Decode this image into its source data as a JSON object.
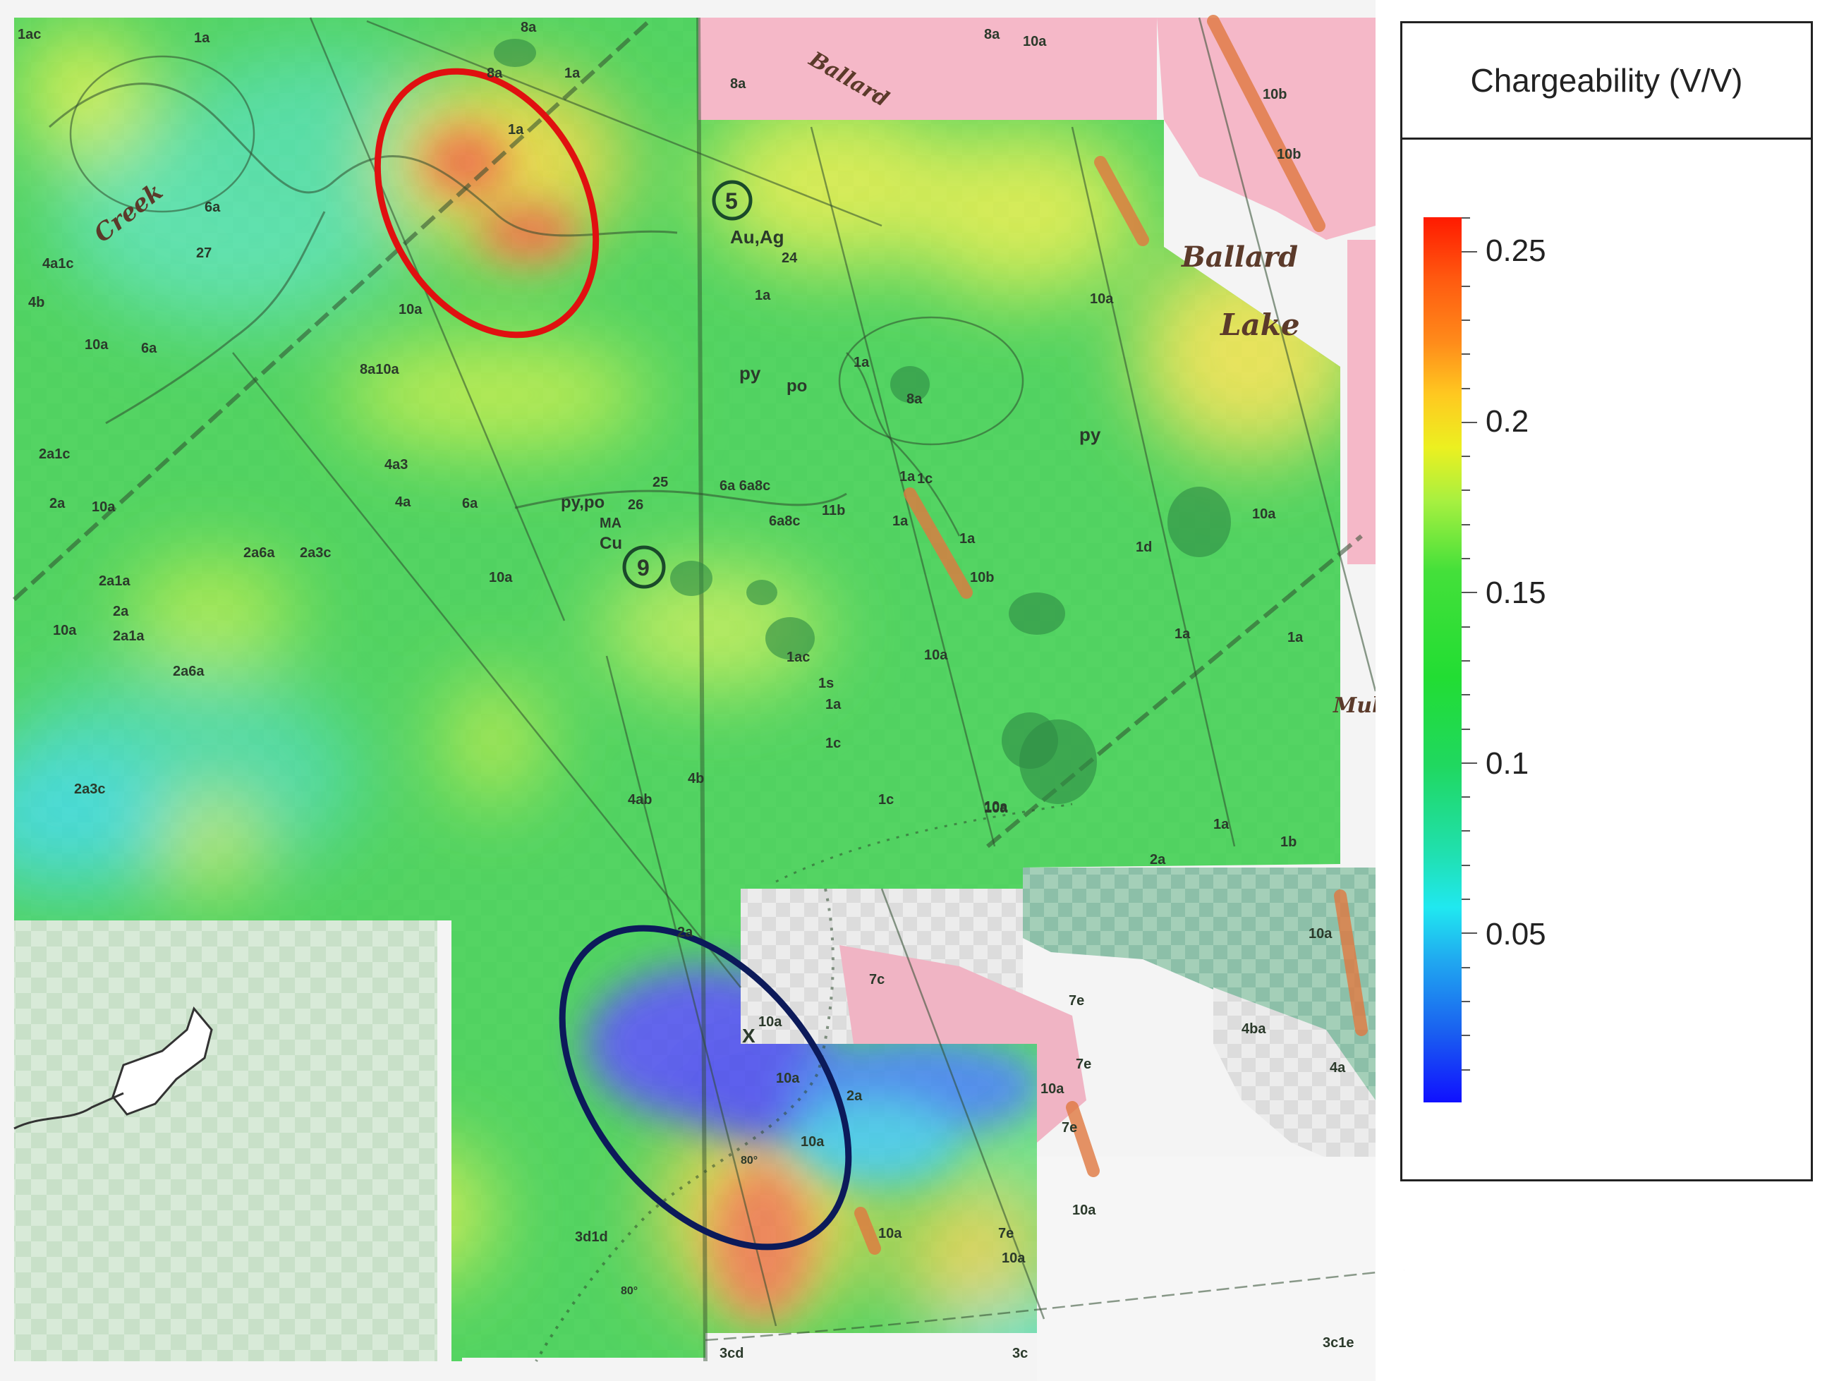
{
  "legend": {
    "title": "Chargeability (V/V)",
    "ticks": [
      "0.25",
      "0.2",
      "0.15",
      "0.1",
      "0.05"
    ],
    "colors": [
      "#ff1a00",
      "#ff8a1a",
      "#ecf020",
      "#22dd33",
      "#20e0b0",
      "#20e8f0",
      "#1a60f0",
      "#1010ff"
    ]
  },
  "places": {
    "creek": "Creek",
    "ballard_top": "Ballard",
    "ballard": "Ballard",
    "lake": "Lake",
    "mul": "Mul"
  },
  "map_labels": {
    "l1": "1ac",
    "l2": "1a",
    "l3": "8a",
    "l4": "8a",
    "l5": "1a",
    "l6": "1a",
    "l7": "5",
    "l8": "Au,Ag",
    "l9": "24",
    "l10": "6a",
    "l11": "27",
    "l12": "4a1c",
    "l13": "4b",
    "l14": "10a",
    "l15": "6a",
    "l16": "8a10a",
    "l17": "10a",
    "l18": "2a1c",
    "l19": "2a",
    "l20": "10a",
    "l21": "4a3",
    "l22": "4a",
    "l23": "6a",
    "l24": "py,po",
    "l25": "MA",
    "l26": "Cu",
    "l27": "26",
    "l28": "25",
    "l29": "9",
    "l30": "6a 6a8c",
    "l31": "6a8c",
    "l32": "11b",
    "l33": "2a6a",
    "l34": "2a3c",
    "l35": "10a",
    "l36": "2a1a",
    "l37": "2a",
    "l38": "2a1a",
    "l39": "2a6a",
    "l40": "10a",
    "l41": "py",
    "l42": "po",
    "l43": "1a",
    "l44": "8a",
    "l45": "py",
    "l46": "1a",
    "l47": "1c",
    "l48": "1a",
    "l49": "10b",
    "l50": "1a",
    "l51": "1d",
    "l52": "10a",
    "l53": "1ac",
    "l54": "1s",
    "l55": "1a",
    "l56": "1c",
    "l57": "4b",
    "l58": "4ab",
    "l59": "1c",
    "l60": "10a",
    "l61": "1a",
    "l62": "1a",
    "l63": "2a",
    "l64": "10a",
    "l65": "2a",
    "l66": "7c",
    "l67": "10a",
    "l68": "10a",
    "l69": "2a",
    "l70": "10a",
    "l71": "7e",
    "l72": "7e",
    "l73": "10a",
    "l74": "7e",
    "l75": "10a",
    "l76": "4ba",
    "l77": "4a",
    "l78": "3d1d",
    "l79": "80°",
    "l80": "10a",
    "l81": "7e",
    "l82": "10a",
    "l83": "3c",
    "l84": "3cd",
    "l85": "3c1e",
    "l86": "10b",
    "l87": "10b",
    "l88": "8a",
    "l89": "10a",
    "l90": "10a",
    "l91": "1a",
    "l92": "1b",
    "l93": "10a",
    "l94": "8a",
    "l95": "1a",
    "l96": "2a3c",
    "l97": "80°",
    "l98": "10a",
    "l99": "X"
  }
}
